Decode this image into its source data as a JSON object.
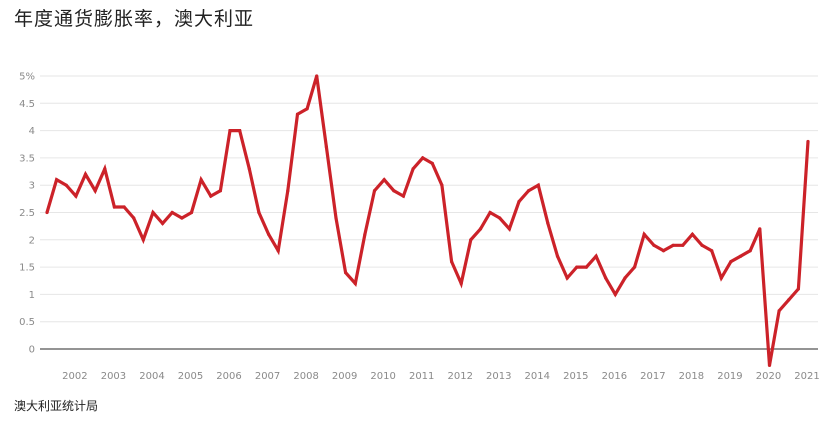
{
  "chart_data": {
    "type": "line",
    "title": "年度通货膨胀率，澳大利亚",
    "source": "澳大利亚统计局",
    "ylim": [
      -0.3,
      5
    ],
    "xlim": [
      2001.65,
      2021.6
    ],
    "grid": true,
    "legend": "none",
    "y_ticks": [
      {
        "value": 5,
        "label": "5%"
      },
      {
        "value": 4.5,
        "label": "4.5"
      },
      {
        "value": 4,
        "label": "4"
      },
      {
        "value": 3.5,
        "label": "3.5"
      },
      {
        "value": 3,
        "label": "3"
      },
      {
        "value": 2.5,
        "label": "2.5"
      },
      {
        "value": 2,
        "label": "2"
      },
      {
        "value": 1.5,
        "label": "1.5"
      },
      {
        "value": 1,
        "label": "1"
      },
      {
        "value": 0.5,
        "label": "0.5"
      },
      {
        "value": 0,
        "label": "0"
      }
    ],
    "x_ticks": [
      "2002",
      "2003",
      "2004",
      "2005",
      "2006",
      "2007",
      "2008",
      "2009",
      "2010",
      "2011",
      "2012",
      "2013",
      "2014",
      "2015",
      "2016",
      "2017",
      "2018",
      "2019",
      "2020",
      "2021"
    ],
    "series": [
      {
        "color": "#cc2229",
        "points": [
          [
            2001.75,
            2.5
          ],
          [
            2002.0,
            3.1
          ],
          [
            2002.25,
            3.0
          ],
          [
            2002.5,
            2.8
          ],
          [
            2002.75,
            3.2
          ],
          [
            2003.0,
            2.9
          ],
          [
            2003.25,
            3.3
          ],
          [
            2003.5,
            2.6
          ],
          [
            2003.75,
            2.6
          ],
          [
            2004.0,
            2.4
          ],
          [
            2004.25,
            2.0
          ],
          [
            2004.5,
            2.5
          ],
          [
            2004.75,
            2.3
          ],
          [
            2005.0,
            2.5
          ],
          [
            2005.25,
            2.4
          ],
          [
            2005.5,
            2.5
          ],
          [
            2005.75,
            3.1
          ],
          [
            2006.0,
            2.8
          ],
          [
            2006.25,
            2.9
          ],
          [
            2006.5,
            4.0
          ],
          [
            2006.75,
            4.0
          ],
          [
            2007.0,
            3.3
          ],
          [
            2007.25,
            2.5
          ],
          [
            2007.5,
            2.1
          ],
          [
            2007.75,
            1.8
          ],
          [
            2008.0,
            2.9
          ],
          [
            2008.25,
            4.3
          ],
          [
            2008.5,
            4.4
          ],
          [
            2008.75,
            5.0
          ],
          [
            2009.0,
            3.7
          ],
          [
            2009.25,
            2.4
          ],
          [
            2009.5,
            1.4
          ],
          [
            2009.75,
            1.2
          ],
          [
            2010.0,
            2.1
          ],
          [
            2010.25,
            2.9
          ],
          [
            2010.5,
            3.1
          ],
          [
            2010.75,
            2.9
          ],
          [
            2011.0,
            2.8
          ],
          [
            2011.25,
            3.3
          ],
          [
            2011.5,
            3.5
          ],
          [
            2011.75,
            3.4
          ],
          [
            2012.0,
            3.0
          ],
          [
            2012.25,
            1.6
          ],
          [
            2012.5,
            1.2
          ],
          [
            2012.75,
            2.0
          ],
          [
            2013.0,
            2.2
          ],
          [
            2013.25,
            2.5
          ],
          [
            2013.5,
            2.4
          ],
          [
            2013.75,
            2.2
          ],
          [
            2014.0,
            2.7
          ],
          [
            2014.25,
            2.9
          ],
          [
            2014.5,
            3.0
          ],
          [
            2014.75,
            2.3
          ],
          [
            2015.0,
            1.7
          ],
          [
            2015.25,
            1.3
          ],
          [
            2015.5,
            1.5
          ],
          [
            2015.75,
            1.5
          ],
          [
            2016.0,
            1.7
          ],
          [
            2016.25,
            1.3
          ],
          [
            2016.5,
            1.0
          ],
          [
            2016.75,
            1.3
          ],
          [
            2017.0,
            1.5
          ],
          [
            2017.25,
            2.1
          ],
          [
            2017.5,
            1.9
          ],
          [
            2017.75,
            1.8
          ],
          [
            2018.0,
            1.9
          ],
          [
            2018.25,
            1.9
          ],
          [
            2018.5,
            2.1
          ],
          [
            2018.75,
            1.9
          ],
          [
            2019.0,
            1.8
          ],
          [
            2019.25,
            1.3
          ],
          [
            2019.5,
            1.6
          ],
          [
            2019.75,
            1.7
          ],
          [
            2020.0,
            1.8
          ],
          [
            2020.25,
            2.2
          ],
          [
            2020.5,
            -0.3
          ],
          [
            2020.75,
            0.7
          ],
          [
            2021.0,
            0.9
          ],
          [
            2021.25,
            1.1
          ],
          [
            2021.5,
            3.8
          ]
        ]
      }
    ]
  }
}
